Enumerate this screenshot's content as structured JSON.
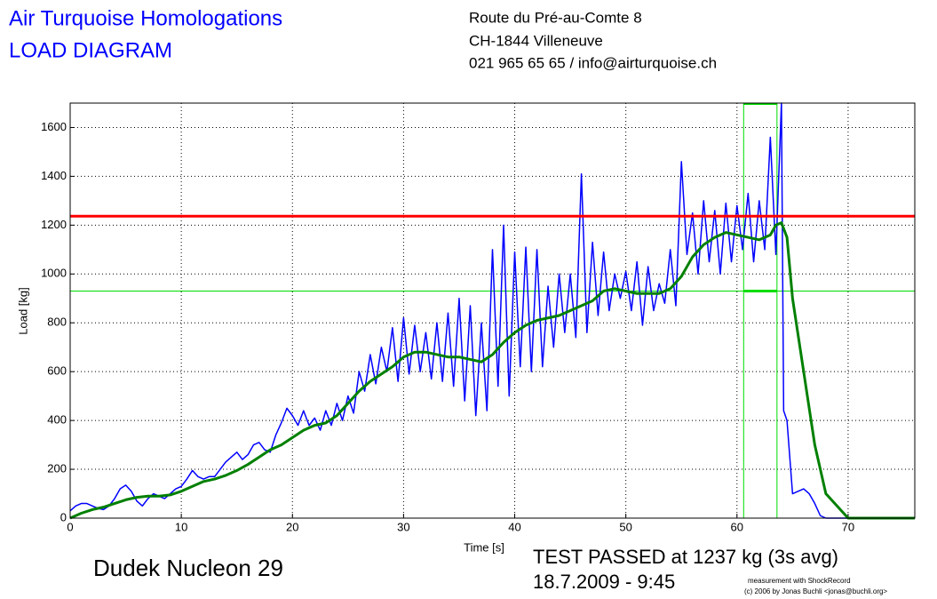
{
  "header": {
    "title": "Air Turquoise Homologations",
    "subtitle": "LOAD DIAGRAM",
    "address": [
      "Route du Pré-au-Comte 8",
      "CH-1844 Villeneuve",
      "021 965 65 65 / info@airturquoise.ch"
    ]
  },
  "chart_data": {
    "type": "line",
    "xlabel": "Time [s]",
    "ylabel": "Load [kg]",
    "xlim": [
      0,
      76
    ],
    "ylim": [
      0,
      1700
    ],
    "xticks": [
      0,
      10,
      20,
      30,
      40,
      50,
      60,
      70
    ],
    "yticks": [
      0,
      200,
      400,
      600,
      800,
      1000,
      1200,
      1400,
      1600
    ],
    "grid": true,
    "series": [
      {
        "name": "Load",
        "color": "#0000ff",
        "width": 1.5,
        "x": [
          0,
          0.5,
          1,
          1.5,
          2,
          2.5,
          3,
          3.5,
          4,
          4.5,
          5,
          5.5,
          6,
          6.5,
          7,
          7.5,
          8,
          8.5,
          9,
          9.5,
          10,
          10.5,
          11,
          11.5,
          12,
          12.5,
          13,
          13.5,
          14,
          14.5,
          15,
          15.5,
          16,
          16.5,
          17,
          17.5,
          18,
          18.5,
          19,
          19.5,
          20,
          20.5,
          21,
          21.5,
          22,
          22.5,
          23,
          23.5,
          24,
          24.5,
          25,
          25.5,
          26,
          26.5,
          27,
          27.5,
          28,
          28.5,
          29,
          29.5,
          30,
          30.5,
          31,
          31.5,
          32,
          32.5,
          33,
          33.5,
          34,
          34.5,
          35,
          35.5,
          36,
          36.5,
          37,
          37.5,
          38,
          38.5,
          39,
          39.5,
          40,
          40.5,
          41,
          41.5,
          42,
          42.5,
          43,
          43.5,
          44,
          44.5,
          45,
          45.5,
          46,
          46.5,
          47,
          47.5,
          48,
          48.5,
          49,
          49.5,
          50,
          50.5,
          51,
          51.5,
          52,
          52.5,
          53,
          53.5,
          54,
          54.5,
          55,
          55.5,
          56,
          56.5,
          57,
          57.5,
          58,
          58.5,
          59,
          59.5,
          60,
          60.5,
          61,
          61.5,
          62,
          62.5,
          63,
          63.5,
          64,
          64.2,
          64.5,
          65,
          65.5,
          66,
          66.5,
          67,
          67.5,
          68,
          76
        ],
        "values": [
          30,
          50,
          60,
          60,
          50,
          40,
          35,
          50,
          80,
          120,
          135,
          110,
          70,
          50,
          80,
          100,
          90,
          80,
          100,
          120,
          130,
          160,
          195,
          170,
          160,
          170,
          170,
          200,
          230,
          250,
          270,
          240,
          260,
          300,
          310,
          280,
          270,
          340,
          390,
          450,
          420,
          380,
          440,
          380,
          410,
          360,
          440,
          380,
          470,
          400,
          500,
          430,
          600,
          520,
          670,
          550,
          700,
          600,
          780,
          560,
          820,
          590,
          790,
          600,
          760,
          570,
          800,
          560,
          840,
          540,
          900,
          480,
          870,
          420,
          800,
          440,
          1100,
          540,
          1200,
          500,
          1090,
          620,
          1110,
          600,
          1100,
          620,
          950,
          700,
          1000,
          760,
          1000,
          740,
          1410,
          760,
          1130,
          830,
          1090,
          850,
          1000,
          900,
          1010,
          850,
          1050,
          790,
          1030,
          850,
          960,
          880,
          1100,
          870,
          1460,
          1080,
          1250,
          1000,
          1300,
          1050,
          1260,
          1000,
          1290,
          1050,
          1280,
          1100,
          1330,
          1050,
          1300,
          1100,
          1560,
          1080,
          1700,
          440,
          400,
          100,
          110,
          120,
          100,
          60,
          10,
          0,
          0
        ]
      },
      {
        "name": "3s average",
        "color": "#008000",
        "width": 3,
        "x": [
          0,
          1,
          2,
          3,
          4,
          5,
          6,
          7,
          8,
          9,
          10,
          11,
          12,
          13,
          14,
          15,
          16,
          17,
          18,
          19,
          20,
          21,
          22,
          23,
          24,
          25,
          26,
          27,
          28,
          29,
          30,
          31,
          32,
          33,
          34,
          35,
          36,
          37,
          38,
          39,
          40,
          41,
          42,
          43,
          44,
          45,
          46,
          47,
          48,
          49,
          50,
          51,
          52,
          53,
          54,
          55,
          56,
          57,
          58,
          59,
          60,
          61,
          62,
          63,
          63.5,
          64,
          64.5,
          65,
          66,
          67,
          68,
          69,
          70,
          76
        ],
        "values": [
          0,
          20,
          35,
          45,
          60,
          75,
          85,
          90,
          90,
          95,
          110,
          130,
          150,
          160,
          175,
          195,
          220,
          250,
          280,
          300,
          330,
          360,
          380,
          390,
          420,
          470,
          520,
          560,
          590,
          620,
          660,
          680,
          680,
          670,
          660,
          660,
          650,
          640,
          670,
          720,
          760,
          790,
          810,
          820,
          830,
          850,
          870,
          890,
          930,
          940,
          930,
          920,
          920,
          920,
          940,
          990,
          1070,
          1120,
          1150,
          1170,
          1160,
          1150,
          1140,
          1160,
          1200,
          1210,
          1150,
          900,
          600,
          300,
          100,
          50,
          0,
          0
        ]
      }
    ],
    "limit": {
      "value": 1237,
      "color": "#ff0000"
    },
    "avg_window": {
      "start": 60.6,
      "end": 63.6,
      "level": 930,
      "color": "#00dd00"
    }
  },
  "footer": {
    "glider": "Dudek Nucleon 29",
    "result": "TEST PASSED at 1237 kg (3s avg)",
    "date": "18.7.2009 - 9:45",
    "credit": [
      "measurement with ShockRecord",
      "(c) 2006 by Jonas Buchli <jonas@buchli.org>"
    ]
  }
}
